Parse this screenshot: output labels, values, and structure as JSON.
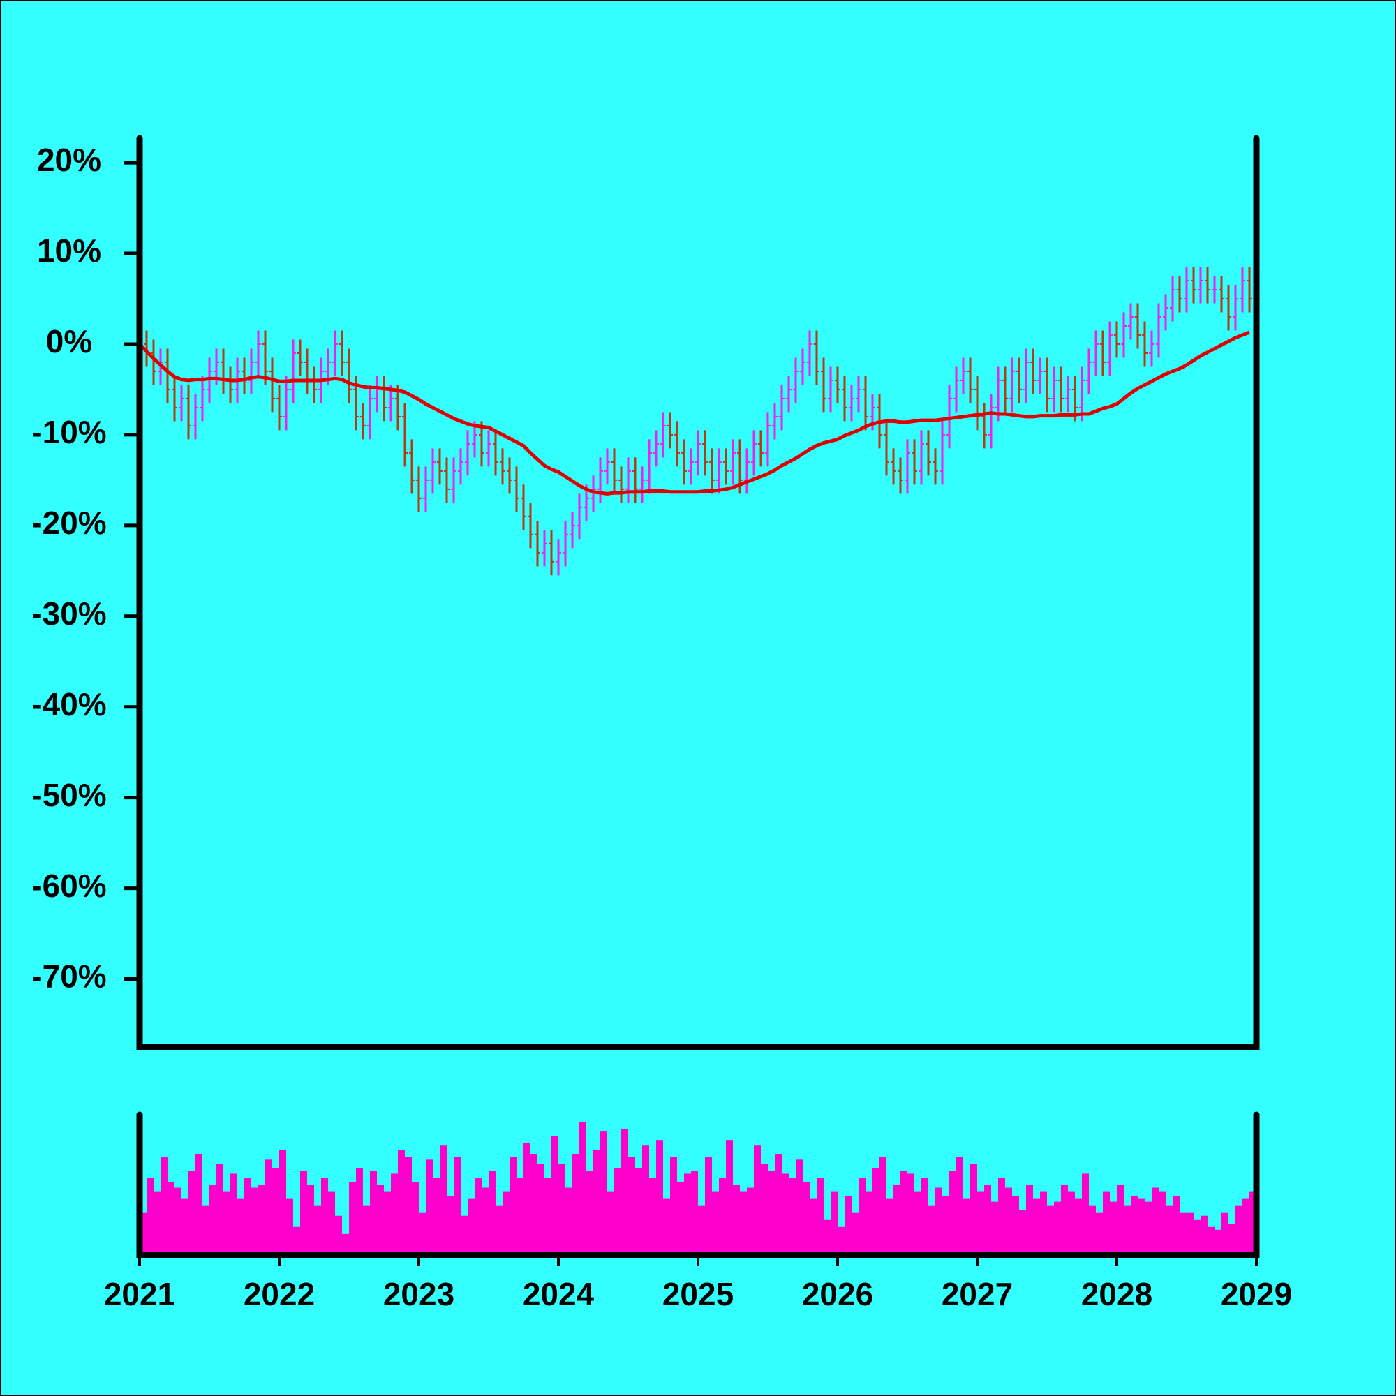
{
  "chart_data": [
    {
      "type": "ohlc",
      "x": [
        2021,
        2021.05,
        2021.1,
        2021.15,
        2021.2,
        2021.25,
        2021.3,
        2021.35,
        2021.4,
        2021.45,
        2021.5,
        2021.55,
        2021.6,
        2021.65,
        2021.7,
        2021.75,
        2021.8,
        2021.85,
        2021.9,
        2021.95,
        2022,
        2022.05,
        2022.1,
        2022.15,
        2022.2,
        2022.25,
        2022.3,
        2022.35,
        2022.4,
        2022.45,
        2022.5,
        2022.55,
        2022.6,
        2022.65,
        2022.7,
        2022.75,
        2022.8,
        2022.85,
        2022.9,
        2022.95,
        2023,
        2023.05,
        2023.1,
        2023.15,
        2023.2,
        2023.25,
        2023.3,
        2023.35,
        2023.4,
        2023.45,
        2023.5,
        2023.55,
        2023.6,
        2023.65,
        2023.7,
        2023.75,
        2023.8,
        2023.85,
        2023.9,
        2023.95,
        2024,
        2024.05,
        2024.1,
        2024.15,
        2024.2,
        2024.25,
        2024.3,
        2024.35,
        2024.4,
        2024.45,
        2024.5,
        2024.55,
        2024.6,
        2024.65,
        2024.7,
        2024.75,
        2024.8,
        2024.85,
        2024.9,
        2024.95,
        2025,
        2025.05,
        2025.1,
        2025.15,
        2025.2,
        2025.25,
        2025.3,
        2025.35,
        2025.4,
        2025.45,
        2025.5,
        2025.55,
        2025.6,
        2025.65,
        2025.7,
        2025.75,
        2025.8,
        2025.85,
        2025.9,
        2025.95,
        2026,
        2026.05,
        2026.1,
        2026.15,
        2026.2,
        2026.25,
        2026.3,
        2026.35,
        2026.4,
        2026.45,
        2026.5,
        2026.55,
        2026.6,
        2026.65,
        2026.7,
        2026.75,
        2026.8,
        2026.85,
        2026.9,
        2026.95,
        2027,
        2027.05,
        2027.1,
        2027.15,
        2027.2,
        2027.25,
        2027.3,
        2027.35,
        2027.4,
        2027.45,
        2027.5,
        2027.55,
        2027.6,
        2027.65,
        2027.7,
        2027.75,
        2027.8,
        2027.85,
        2027.9,
        2027.95,
        2028,
        2028.05,
        2028.1,
        2028.15,
        2028.2,
        2028.25,
        2028.3,
        2028.35,
        2028.4,
        2028.45,
        2028.5,
        2028.55,
        2028.6,
        2028.65,
        2028.7,
        2028.75,
        2028.8,
        2028.85,
        2028.9,
        2028.95
      ],
      "open": [
        1,
        0,
        -1,
        -3,
        -2,
        -5,
        -7,
        -6,
        -9,
        -7,
        -5,
        -3,
        -2,
        -4,
        -5,
        -3,
        -4,
        -2,
        0,
        -3,
        -6,
        -8,
        -5,
        -1,
        -2,
        -4,
        -5,
        -3,
        -2,
        0,
        -2,
        -5,
        -8,
        -9,
        -6,
        -5,
        -7,
        -6,
        -8,
        -12,
        -15,
        -17,
        -15,
        -13,
        -14,
        -16,
        -14,
        -13,
        -11,
        -10,
        -12,
        -11,
        -13,
        -14,
        -15,
        -17,
        -19,
        -21,
        -23,
        -22,
        -24,
        -23,
        -21,
        -20,
        -18,
        -17,
        -16,
        -14,
        -13,
        -15,
        -16,
        -14,
        -16,
        -15,
        -12,
        -11,
        -9,
        -10,
        -12,
        -14,
        -13,
        -11,
        -13,
        -15,
        -13,
        -14,
        -12,
        -15,
        -13,
        -11,
        -12,
        -9,
        -8,
        -6,
        -5,
        -3,
        -2,
        0,
        -3,
        -6,
        -4,
        -5,
        -7,
        -6,
        -5,
        -8,
        -7,
        -10,
        -13,
        -14,
        -15,
        -12,
        -14,
        -11,
        -13,
        -14,
        -10,
        -6,
        -4,
        -3,
        -5,
        -8,
        -10,
        -7,
        -4,
        -6,
        -3,
        -5,
        -2,
        -4,
        -3,
        -6,
        -4,
        -6,
        -5,
        -7,
        -4,
        -2,
        0,
        -2,
        1,
        0,
        2,
        3,
        1,
        -1,
        0,
        3,
        4,
        6,
        5,
        7,
        6,
        7,
        6,
        6,
        5,
        3,
        5,
        7
      ],
      "high": [
        2.5,
        1.5,
        0.5,
        -0.5,
        -0.5,
        -3.5,
        -4.5,
        -4.5,
        -5.5,
        -3.5,
        -1.5,
        -0.5,
        -0.5,
        -2.5,
        -1.5,
        -1.5,
        -0.5,
        1.5,
        1.5,
        -1.5,
        -4.5,
        -3.5,
        0.5,
        0.5,
        -0.5,
        -2.5,
        -1.5,
        -0.5,
        1.5,
        1.5,
        -0.5,
        -3.5,
        -6.5,
        -4.5,
        -3.5,
        -3.5,
        -4.5,
        -4.5,
        -6.5,
        -10.5,
        -13.5,
        -13.5,
        -11.5,
        -11.5,
        -12.5,
        -12.5,
        -11.5,
        -9.5,
        -8.5,
        -8.5,
        -9.5,
        -9.5,
        -11.5,
        -12.5,
        -13.5,
        -15.5,
        -17.5,
        -19.5,
        -20.5,
        -20.5,
        -21.5,
        -19.5,
        -18.5,
        -16.5,
        -15.5,
        -14.5,
        -12.5,
        -11.5,
        -11.5,
        -13.5,
        -12.5,
        -12.5,
        -13.5,
        -10.5,
        -9.5,
        -7.5,
        -7.5,
        -8.5,
        -10.5,
        -11.5,
        -9.5,
        -9.5,
        -11.5,
        -11.5,
        -11.5,
        -10.5,
        -10.5,
        -11.5,
        -9.5,
        -9.5,
        -7.5,
        -6.5,
        -4.5,
        -3.5,
        -1.5,
        -0.5,
        1.5,
        1.5,
        -1.5,
        -2.5,
        -2.5,
        -3.5,
        -4.5,
        -3.5,
        -3.5,
        -5.5,
        -5.5,
        -8.5,
        -11.5,
        -12.5,
        -10.5,
        -10.5,
        -9.5,
        -9.5,
        -11.5,
        -8.5,
        -4.5,
        -2.5,
        -1.5,
        -1.5,
        -3.5,
        -6.5,
        -5.5,
        -2.5,
        -2.5,
        -1.5,
        -1.5,
        -0.5,
        -0.5,
        -1.5,
        -1.5,
        -2.5,
        -2.5,
        -3.5,
        -3.5,
        -2.5,
        -0.5,
        1.5,
        1.5,
        2.5,
        2.5,
        3.5,
        4.5,
        4.5,
        2.5,
        1.5,
        4.5,
        5.5,
        7.5,
        7.5,
        8.5,
        8.5,
        8.5,
        8.5,
        7.5,
        7.5,
        6.5,
        6.5,
        8.5,
        8.5
      ],
      "low": [
        -1.5,
        -2.5,
        -4.5,
        -4.5,
        -6.5,
        -8.5,
        -8.5,
        -10.5,
        -10.5,
        -8.5,
        -6.5,
        -4.5,
        -5.5,
        -6.5,
        -6.5,
        -5.5,
        -5.5,
        -3.5,
        -4.5,
        -7.5,
        -9.5,
        -9.5,
        -6.5,
        -3.5,
        -5.5,
        -6.5,
        -6.5,
        -4.5,
        -3.5,
        -3.5,
        -6.5,
        -9.5,
        -10.5,
        -10.5,
        -7.5,
        -8.5,
        -8.5,
        -9.5,
        -13.5,
        -16.5,
        -18.5,
        -18.5,
        -16.5,
        -15.5,
        -17.5,
        -17.5,
        -15.5,
        -14.5,
        -12.5,
        -13.5,
        -13.5,
        -14.5,
        -15.5,
        -16.5,
        -18.5,
        -20.5,
        -22.5,
        -24.5,
        -24.5,
        -25.5,
        -25.5,
        -24.5,
        -22.5,
        -21.5,
        -19.5,
        -18.5,
        -17.5,
        -15.5,
        -16.5,
        -17.5,
        -17.5,
        -17.5,
        -17.5,
        -16.5,
        -13.5,
        -12.5,
        -11.5,
        -13.5,
        -15.5,
        -15.5,
        -14.5,
        -14.5,
        -16.5,
        -16.5,
        -15.5,
        -15.5,
        -16.5,
        -16.5,
        -14.5,
        -13.5,
        -13.5,
        -10.5,
        -9.5,
        -7.5,
        -6.5,
        -4.5,
        -3.5,
        -4.5,
        -7.5,
        -7.5,
        -6.5,
        -8.5,
        -8.5,
        -7.5,
        -9.5,
        -9.5,
        -11.5,
        -14.5,
        -15.5,
        -16.5,
        -16.5,
        -15.5,
        -15.5,
        -14.5,
        -15.5,
        -15.5,
        -11.5,
        -7.5,
        -5.5,
        -6.5,
        -9.5,
        -11.5,
        -11.5,
        -8.5,
        -7.5,
        -7.5,
        -6.5,
        -6.5,
        -5.5,
        -5.5,
        -7.5,
        -7.5,
        -7.5,
        -7.5,
        -8.5,
        -8.5,
        -5.5,
        -3.5,
        -3.5,
        -3.5,
        -1.5,
        -1.5,
        0.5,
        -0.5,
        -2.5,
        -2.5,
        -1.5,
        1.5,
        2.5,
        3.5,
        3.5,
        4.5,
        4.5,
        4.5,
        4.5,
        3.5,
        1.5,
        1.5,
        3.5,
        3.5
      ],
      "close": [
        0,
        -1,
        -3,
        -2,
        -5,
        -7,
        -6,
        -9,
        -7,
        -5,
        -3,
        -2,
        -4,
        -5,
        -3,
        -4,
        -2,
        0,
        -3,
        -6,
        -8,
        -5,
        -1,
        -2,
        -4,
        -5,
        -3,
        -2,
        0,
        -2,
        -5,
        -8,
        -9,
        -6,
        -5,
        -7,
        -6,
        -8,
        -12,
        -15,
        -17,
        -15,
        -13,
        -14,
        -16,
        -14,
        -13,
        -11,
        -10,
        -12,
        -11,
        -13,
        -14,
        -15,
        -17,
        -19,
        -21,
        -23,
        -22,
        -24,
        -23,
        -21,
        -20,
        -18,
        -17,
        -16,
        -14,
        -13,
        -15,
        -16,
        -14,
        -16,
        -15,
        -12,
        -11,
        -9,
        -10,
        -12,
        -14,
        -13,
        -11,
        -13,
        -15,
        -13,
        -14,
        -12,
        -15,
        -13,
        -11,
        -12,
        -9,
        -8,
        -6,
        -5,
        -3,
        -2,
        0,
        -3,
        -6,
        -4,
        -5,
        -7,
        -6,
        -5,
        -8,
        -7,
        -10,
        -13,
        -14,
        -15,
        -12,
        -14,
        -11,
        -13,
        -14,
        -10,
        -6,
        -4,
        -3,
        -5,
        -8,
        -10,
        -7,
        -4,
        -6,
        -3,
        -5,
        -2,
        -4,
        -3,
        -6,
        -4,
        -6,
        -5,
        -7,
        -4,
        -2,
        0,
        -2,
        1,
        0,
        2,
        3,
        1,
        -1,
        0,
        3,
        4,
        6,
        5,
        7,
        6,
        7,
        6,
        6,
        5,
        3,
        5,
        7,
        5
      ],
      "up_color": "#ee22ee",
      "down_color": "#b83a10",
      "moving_average": {
        "color": "#e00000",
        "values": [
          0,
          -0.8,
          -1.6,
          -2.3,
          -3,
          -3.6,
          -3.9,
          -4,
          -3.9,
          -3.9,
          -3.8,
          -3.8,
          -3.9,
          -4,
          -4,
          -3.9,
          -3.7,
          -3.6,
          -3.7,
          -3.9,
          -4.1,
          -4.1,
          -4,
          -4,
          -4,
          -4,
          -4,
          -3.9,
          -3.8,
          -3.9,
          -4.3,
          -4.5,
          -4.7,
          -4.8,
          -4.8,
          -4.9,
          -5,
          -5.1,
          -5.3,
          -5.7,
          -6.1,
          -6.6,
          -7,
          -7.4,
          -7.8,
          -8.2,
          -8.5,
          -8.8,
          -9,
          -9.1,
          -9.2,
          -9.6,
          -10,
          -10.4,
          -10.8,
          -11.2,
          -12,
          -12.7,
          -13.4,
          -13.8,
          -14.1,
          -14.6,
          -15.1,
          -15.6,
          -16,
          -16.3,
          -16.4,
          -16.5,
          -16.4,
          -16.4,
          -16.3,
          -16.3,
          -16.3,
          -16.2,
          -16.2,
          -16.2,
          -16.3,
          -16.3,
          -16.3,
          -16.3,
          -16.3,
          -16.2,
          -16.2,
          -16.1,
          -16,
          -15.8,
          -15.5,
          -15.2,
          -14.9,
          -14.6,
          -14.3,
          -13.9,
          -13.4,
          -13,
          -12.6,
          -12.1,
          -11.6,
          -11.2,
          -10.9,
          -10.7,
          -10.5,
          -10.1,
          -9.8,
          -9.5,
          -9.1,
          -8.8,
          -8.6,
          -8.5,
          -8.5,
          -8.6,
          -8.6,
          -8.5,
          -8.4,
          -8.4,
          -8.4,
          -8.3,
          -8.2,
          -8.1,
          -8,
          -7.9,
          -7.8,
          -7.7,
          -7.6,
          -7.7,
          -7.7,
          -7.8,
          -7.9,
          -8,
          -8,
          -7.9,
          -7.9,
          -7.9,
          -7.8,
          -7.8,
          -7.8,
          -7.7,
          -7.7,
          -7.4,
          -7.1,
          -6.9,
          -6.6,
          -6,
          -5.4,
          -4.9,
          -4.5,
          -4.1,
          -3.7,
          -3.3,
          -3,
          -2.7,
          -2.3,
          -1.8,
          -1.3,
          -0.9,
          -0.5,
          -0.1,
          0.3,
          0.7,
          1,
          1.3
        ]
      },
      "xlim": [
        2021,
        2029
      ],
      "ylim": [
        -77.5,
        22.7
      ],
      "yticks": [
        {
          "value": 20,
          "label": "20%"
        },
        {
          "value": 10,
          "label": "10%"
        },
        {
          "value": 0,
          "label": "0%"
        },
        {
          "value": -10,
          "label": "-10%"
        },
        {
          "value": -20,
          "label": "-20%"
        },
        {
          "value": -30,
          "label": "-30%"
        },
        {
          "value": -40,
          "label": "-40%"
        },
        {
          "value": -50,
          "label": "-50%"
        },
        {
          "value": -60,
          "label": "-60%"
        },
        {
          "value": -70,
          "label": "-70%"
        }
      ]
    },
    {
      "type": "bar",
      "x": [
        2021,
        2021.05,
        2021.1,
        2021.15,
        2021.2,
        2021.25,
        2021.3,
        2021.35,
        2021.4,
        2021.45,
        2021.5,
        2021.55,
        2021.6,
        2021.65,
        2021.7,
        2021.75,
        2021.8,
        2021.85,
        2021.9,
        2021.95,
        2022,
        2022.05,
        2022.1,
        2022.15,
        2022.2,
        2022.25,
        2022.3,
        2022.35,
        2022.4,
        2022.45,
        2022.5,
        2022.55,
        2022.6,
        2022.65,
        2022.7,
        2022.75,
        2022.8,
        2022.85,
        2022.9,
        2022.95,
        2023,
        2023.05,
        2023.1,
        2023.15,
        2023.2,
        2023.25,
        2023.3,
        2023.35,
        2023.4,
        2023.45,
        2023.5,
        2023.55,
        2023.6,
        2023.65,
        2023.7,
        2023.75,
        2023.8,
        2023.85,
        2023.9,
        2023.95,
        2024,
        2024.05,
        2024.1,
        2024.15,
        2024.2,
        2024.25,
        2024.3,
        2024.35,
        2024.4,
        2024.45,
        2024.5,
        2024.55,
        2024.6,
        2024.65,
        2024.7,
        2024.75,
        2024.8,
        2024.85,
        2024.9,
        2024.95,
        2025,
        2025.05,
        2025.1,
        2025.15,
        2025.2,
        2025.25,
        2025.3,
        2025.35,
        2025.4,
        2025.45,
        2025.5,
        2025.55,
        2025.6,
        2025.65,
        2025.7,
        2025.75,
        2025.8,
        2025.85,
        2025.9,
        2025.95,
        2026,
        2026.05,
        2026.1,
        2026.15,
        2026.2,
        2026.25,
        2026.3,
        2026.35,
        2026.4,
        2026.45,
        2026.5,
        2026.55,
        2026.6,
        2026.65,
        2026.7,
        2026.75,
        2026.8,
        2026.85,
        2026.9,
        2026.95,
        2027,
        2027.05,
        2027.1,
        2027.15,
        2027.2,
        2027.25,
        2027.3,
        2027.35,
        2027.4,
        2027.45,
        2027.5,
        2027.55,
        2027.6,
        2027.65,
        2027.7,
        2027.75,
        2027.8,
        2027.85,
        2027.9,
        2027.95,
        2028,
        2028.05,
        2028.1,
        2028.15,
        2028.2,
        2028.25,
        2028.3,
        2028.35,
        2028.4,
        2028.45,
        2028.5,
        2028.55,
        2028.6,
        2028.65,
        2028.7,
        2028.75,
        2028.8,
        2028.85,
        2028.9,
        2028.95
      ],
      "values": [
        30,
        55,
        45,
        70,
        52,
        48,
        40,
        60,
        72,
        35,
        50,
        65,
        45,
        58,
        40,
        55,
        48,
        50,
        68,
        62,
        75,
        40,
        20,
        60,
        50,
        35,
        55,
        45,
        28,
        15,
        52,
        62,
        35,
        60,
        50,
        45,
        58,
        75,
        70,
        52,
        30,
        68,
        55,
        78,
        42,
        70,
        28,
        40,
        55,
        48,
        60,
        35,
        45,
        70,
        55,
        80,
        72,
        65,
        55,
        85,
        65,
        48,
        72,
        95,
        60,
        75,
        88,
        45,
        62,
        90,
        70,
        62,
        78,
        55,
        82,
        40,
        70,
        52,
        58,
        60,
        35,
        70,
        45,
        55,
        82,
        50,
        45,
        48,
        78,
        65,
        60,
        72,
        58,
        55,
        68,
        52,
        40,
        55,
        25,
        45,
        20,
        42,
        30,
        55,
        45,
        62,
        70,
        40,
        50,
        60,
        58,
        45,
        55,
        35,
        48,
        42,
        60,
        70,
        40,
        65,
        45,
        50,
        38,
        55,
        48,
        42,
        32,
        50,
        40,
        45,
        35,
        38,
        50,
        45,
        40,
        58,
        35,
        30,
        45,
        38,
        50,
        35,
        42,
        40,
        38,
        48,
        45,
        35,
        42,
        30,
        30,
        25,
        28,
        20,
        18,
        30,
        22,
        35,
        40,
        45
      ],
      "color": "#ff00cc",
      "xlim": [
        2021,
        2029
      ],
      "ylim": [
        0,
        100
      ],
      "xticks": [
        2021,
        2022,
        2023,
        2024,
        2025,
        2026,
        2027,
        2028,
        2029
      ]
    }
  ]
}
